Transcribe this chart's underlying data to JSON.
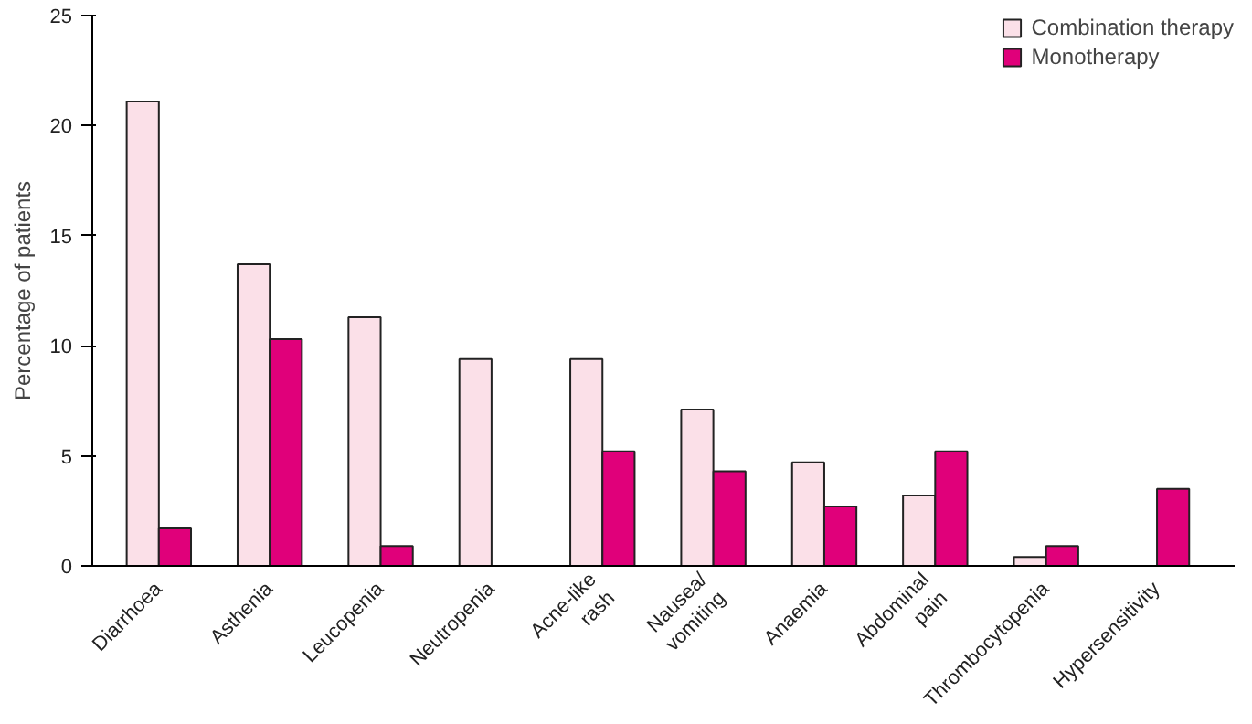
{
  "chart_data": {
    "type": "bar",
    "ylabel": "Percentage of patients",
    "categories": [
      "Diarrhoea",
      "Asthenia",
      "Leucopenia",
      "Neutropenia",
      "Acne-like\nrash",
      "Nausea/\nvomiting",
      "Anaemia",
      "Abdominal\npain",
      "Thrombocytopenia",
      "Hypersensitivity"
    ],
    "series": [
      {
        "name": "Combination therapy",
        "color": "#fbe0e8",
        "values": [
          21.1,
          13.7,
          11.3,
          9.4,
          9.4,
          7.1,
          4.7,
          3.2,
          0.4,
          null
        ]
      },
      {
        "name": "Monotherapy",
        "color": "#e0007a",
        "values": [
          1.7,
          10.3,
          0.9,
          null,
          5.2,
          4.3,
          2.7,
          5.2,
          0.9,
          3.5
        ]
      }
    ],
    "ylim": [
      0,
      25
    ],
    "yticks": [
      0,
      5,
      10,
      15,
      20,
      25
    ],
    "grid": false,
    "legend": "top right"
  }
}
